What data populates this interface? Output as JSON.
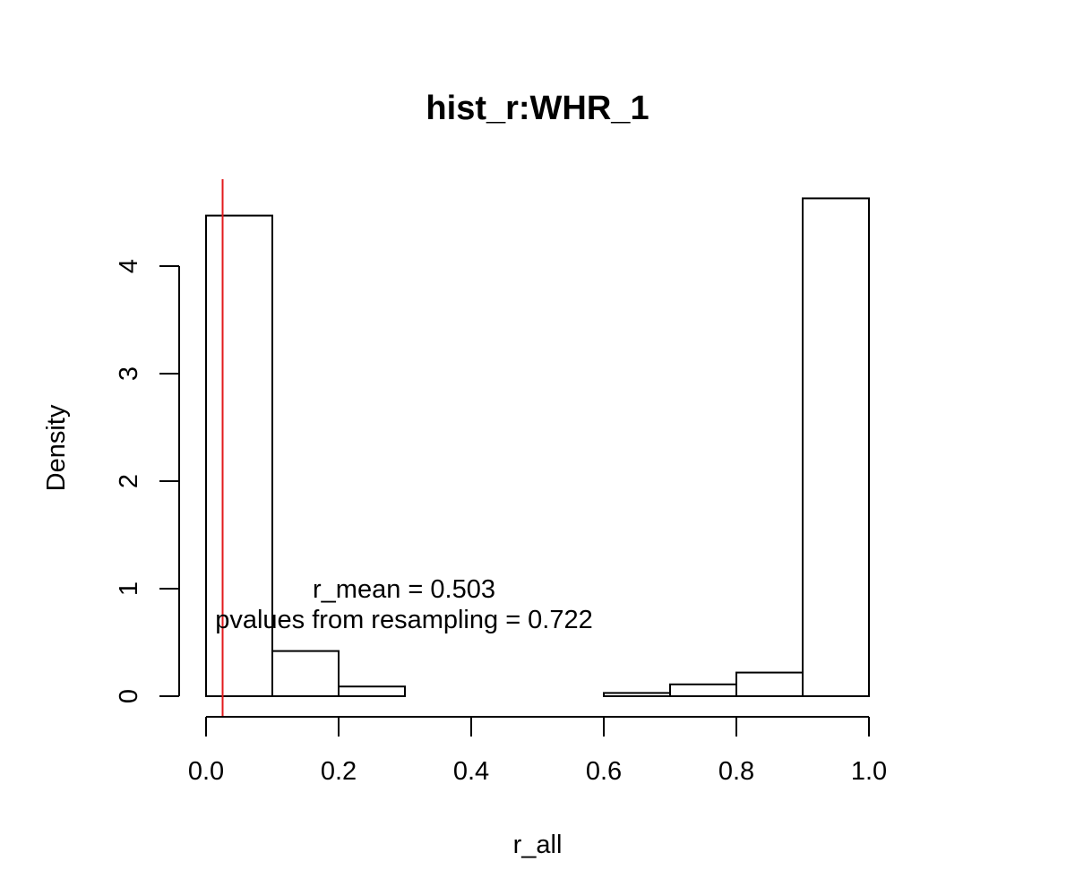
{
  "chart_data": {
    "type": "bar",
    "title": "hist_r:WHR_1",
    "xlabel": "r_all",
    "ylabel": "Density",
    "xlim": [
      0,
      1
    ],
    "ylim": [
      0,
      4.5
    ],
    "bin_edges": [
      0.0,
      0.1,
      0.2,
      0.3,
      0.4,
      0.5,
      0.6,
      0.7,
      0.8,
      0.9,
      1.0
    ],
    "density": [
      4.47,
      0.42,
      0.09,
      0.0,
      0.0,
      0.0,
      0.03,
      0.11,
      0.22,
      4.63
    ],
    "x_ticks": [
      0,
      0.2,
      0.4,
      0.6,
      0.8,
      1
    ],
    "x_tick_labels": [
      "0.0",
      "0.2",
      "0.4",
      "0.6",
      "0.8",
      "1.0"
    ],
    "y_ticks": [
      0,
      1,
      2,
      3,
      4
    ],
    "y_tick_labels": [
      "0",
      "1",
      "2",
      "3",
      "4"
    ],
    "vline": {
      "x": 0.025,
      "color": "#e31a1c"
    },
    "annotations": [
      {
        "text": "r_mean = 0.503"
      },
      {
        "text": "pvalues from resampling = 0.722"
      }
    ],
    "bar_fill": "#ffffff",
    "bar_stroke": "#000000",
    "grid": false,
    "legend": "none"
  }
}
